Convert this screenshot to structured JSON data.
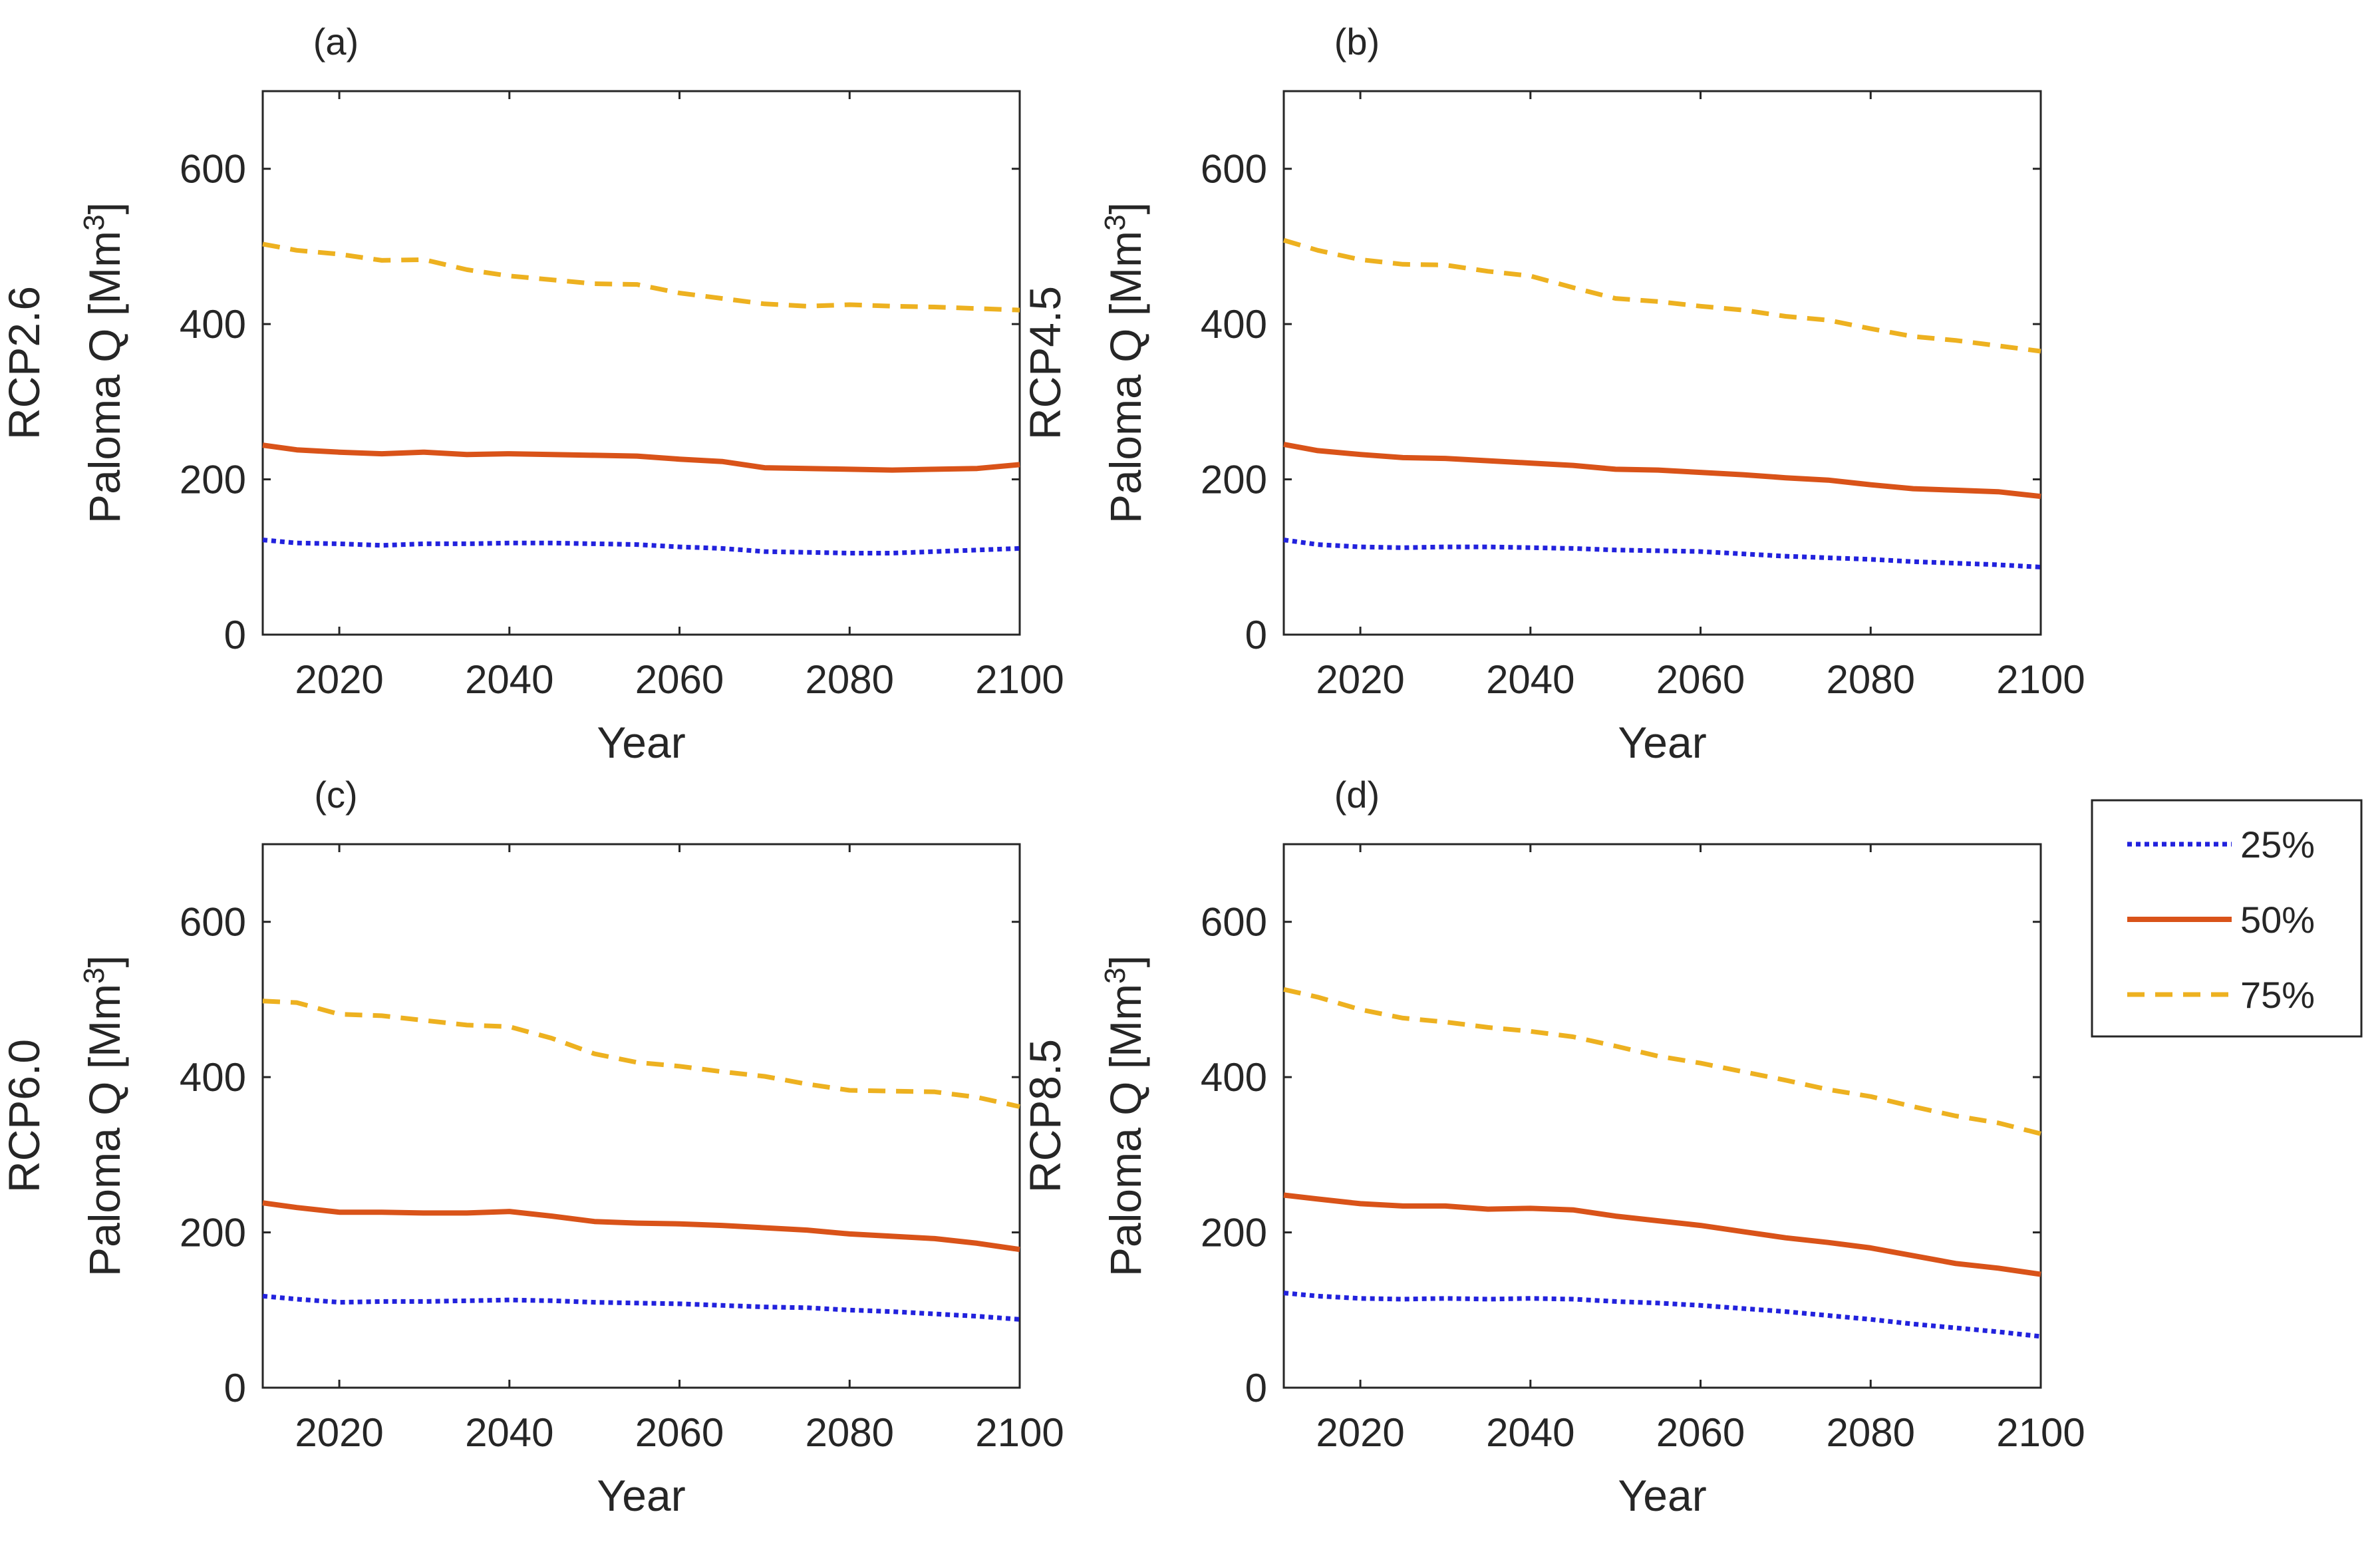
{
  "figure": {
    "legend": {
      "entries": [
        "25%",
        "50%",
        "75%"
      ]
    }
  },
  "chart_data": [
    {
      "type": "line",
      "panel_label": "(a)",
      "scenario": "RCP2.6",
      "xlabel": "Year",
      "ylabel": "Paloma Q [Mm3]",
      "ylabel_main": "Paloma Q [Mm",
      "ylabel_sup": "3",
      "ylabel_close": "]",
      "xlim": [
        2011,
        2100
      ],
      "ylim": [
        0,
        700
      ],
      "xticks": [
        2020,
        2040,
        2060,
        2080,
        2100
      ],
      "yticks": [
        0,
        200,
        400,
        600
      ],
      "x": [
        2011,
        2015,
        2020,
        2025,
        2030,
        2035,
        2040,
        2045,
        2050,
        2055,
        2060,
        2065,
        2070,
        2075,
        2080,
        2085,
        2090,
        2095,
        2100
      ],
      "series": [
        {
          "name": "25%",
          "color": "#2222dd",
          "dash": "dotted",
          "values": [
            122,
            118,
            117,
            115,
            117,
            117,
            118,
            118,
            117,
            116,
            113,
            111,
            107,
            106,
            105,
            105,
            107,
            109,
            111
          ]
        },
        {
          "name": "50%",
          "color": "#d95319",
          "dash": "solid",
          "values": [
            244,
            238,
            235,
            233,
            235,
            232,
            233,
            232,
            231,
            230,
            226,
            223,
            215,
            214,
            213,
            212,
            213,
            214,
            219
          ]
        },
        {
          "name": "75%",
          "color": "#edb120",
          "dash": "dashed",
          "values": [
            503,
            495,
            490,
            482,
            483,
            470,
            462,
            457,
            452,
            451,
            440,
            433,
            426,
            423,
            425,
            423,
            422,
            420,
            418
          ]
        }
      ]
    },
    {
      "type": "line",
      "panel_label": "(b)",
      "scenario": "RCP4.5",
      "xlabel": "Year",
      "ylabel": "Paloma Q [Mm3]",
      "ylabel_main": "Paloma Q [Mm",
      "ylabel_sup": "3",
      "ylabel_close": "]",
      "xlim": [
        2011,
        2100
      ],
      "ylim": [
        0,
        700
      ],
      "xticks": [
        2020,
        2040,
        2060,
        2080,
        2100
      ],
      "yticks": [
        0,
        200,
        400,
        600
      ],
      "x": [
        2011,
        2015,
        2020,
        2025,
        2030,
        2035,
        2040,
        2045,
        2050,
        2055,
        2060,
        2065,
        2070,
        2075,
        2080,
        2085,
        2090,
        2095,
        2100
      ],
      "series": [
        {
          "name": "25%",
          "color": "#2222dd",
          "dash": "dotted",
          "values": [
            122,
            116,
            113,
            112,
            113,
            113,
            112,
            111,
            109,
            108,
            107,
            104,
            101,
            99,
            97,
            94,
            92,
            90,
            87
          ]
        },
        {
          "name": "50%",
          "color": "#d95319",
          "dash": "solid",
          "values": [
            245,
            237,
            232,
            228,
            227,
            224,
            221,
            218,
            213,
            212,
            209,
            206,
            202,
            199,
            193,
            188,
            186,
            184,
            178
          ]
        },
        {
          "name": "75%",
          "color": "#edb120",
          "dash": "dashed",
          "values": [
            508,
            495,
            483,
            477,
            476,
            468,
            462,
            447,
            433,
            429,
            423,
            418,
            410,
            405,
            394,
            384,
            379,
            372,
            365
          ]
        }
      ]
    },
    {
      "type": "line",
      "panel_label": "(c)",
      "scenario": "RCP6.0",
      "xlabel": "Year",
      "ylabel": "Paloma Q [Mm3]",
      "ylabel_main": "Paloma Q [Mm",
      "ylabel_sup": "3",
      "ylabel_close": "]",
      "xlim": [
        2011,
        2100
      ],
      "ylim": [
        0,
        700
      ],
      "xticks": [
        2020,
        2040,
        2060,
        2080,
        2100
      ],
      "yticks": [
        0,
        200,
        400,
        600
      ],
      "x": [
        2011,
        2015,
        2020,
        2025,
        2030,
        2035,
        2040,
        2045,
        2050,
        2055,
        2060,
        2065,
        2070,
        2075,
        2080,
        2085,
        2090,
        2095,
        2100
      ],
      "series": [
        {
          "name": "25%",
          "color": "#2222dd",
          "dash": "dotted",
          "values": [
            118,
            114,
            110,
            111,
            111,
            112,
            113,
            112,
            110,
            109,
            108,
            106,
            104,
            103,
            100,
            98,
            95,
            92,
            88
          ]
        },
        {
          "name": "50%",
          "color": "#d95319",
          "dash": "solid",
          "values": [
            238,
            232,
            226,
            226,
            225,
            225,
            227,
            221,
            214,
            212,
            211,
            209,
            206,
            203,
            198,
            195,
            192,
            186,
            178
          ]
        },
        {
          "name": "75%",
          "color": "#edb120",
          "dash": "dashed",
          "values": [
            498,
            496,
            481,
            479,
            473,
            467,
            465,
            450,
            430,
            419,
            414,
            407,
            401,
            391,
            383,
            382,
            381,
            374,
            362
          ]
        }
      ]
    },
    {
      "type": "line",
      "panel_label": "(d)",
      "scenario": "RCP8.5",
      "xlabel": "Year",
      "ylabel": "Paloma Q [Mm3]",
      "ylabel_main": "Paloma Q [Mm",
      "ylabel_sup": "3",
      "ylabel_close": "]",
      "xlim": [
        2011,
        2100
      ],
      "ylim": [
        0,
        700
      ],
      "xticks": [
        2020,
        2040,
        2060,
        2080,
        2100
      ],
      "yticks": [
        0,
        200,
        400,
        600
      ],
      "x": [
        2011,
        2015,
        2020,
        2025,
        2030,
        2035,
        2040,
        2045,
        2050,
        2055,
        2060,
        2065,
        2070,
        2075,
        2080,
        2085,
        2090,
        2095,
        2100
      ],
      "series": [
        {
          "name": "25%",
          "color": "#2222dd",
          "dash": "dotted",
          "values": [
            122,
            118,
            115,
            114,
            115,
            114,
            115,
            114,
            111,
            109,
            106,
            102,
            98,
            93,
            88,
            82,
            77,
            72,
            66
          ]
        },
        {
          "name": "50%",
          "color": "#d95319",
          "dash": "solid",
          "values": [
            248,
            243,
            237,
            234,
            234,
            230,
            231,
            229,
            221,
            215,
            209,
            201,
            193,
            187,
            180,
            170,
            160,
            154,
            146
          ]
        },
        {
          "name": "75%",
          "color": "#edb120",
          "dash": "dashed",
          "values": [
            513,
            503,
            487,
            476,
            471,
            464,
            459,
            452,
            440,
            427,
            418,
            407,
            396,
            384,
            375,
            362,
            350,
            341,
            327
          ]
        }
      ]
    }
  ]
}
